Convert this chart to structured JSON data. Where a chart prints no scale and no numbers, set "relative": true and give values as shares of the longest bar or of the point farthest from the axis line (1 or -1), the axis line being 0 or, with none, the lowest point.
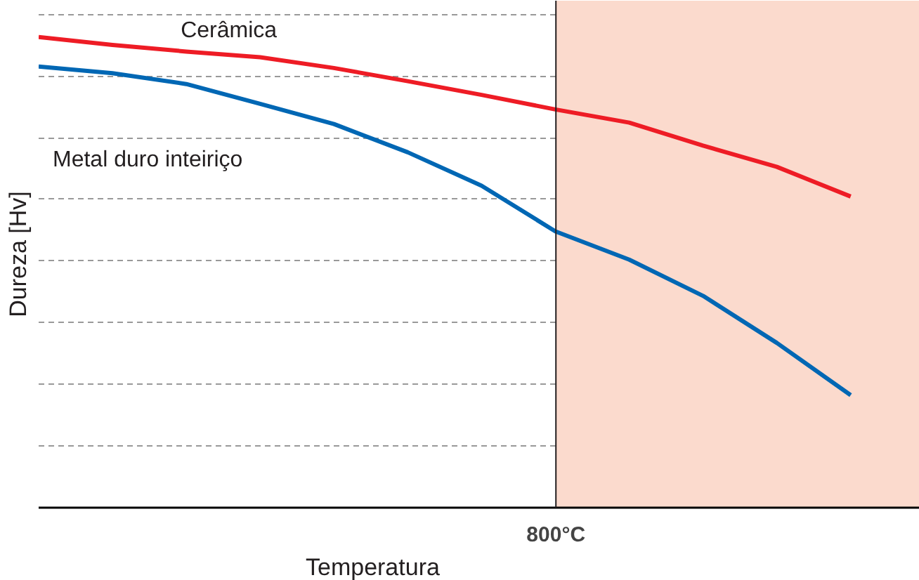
{
  "chart_data": {
    "type": "line",
    "relative": true,
    "xlabel": "Temperatura",
    "ylabel": "Dureza [Hv]",
    "categories": [
      null,
      null,
      null,
      null,
      null,
      null,
      null,
      null,
      null,
      null,
      null,
      null
    ],
    "series": [
      {
        "name": "Cerâmica",
        "color": "#ee1c25",
        "values": [
          1.0,
          0.983,
          0.969,
          0.957,
          0.934,
          0.906,
          0.877,
          0.846,
          0.818,
          0.769,
          0.724,
          0.661
        ]
      },
      {
        "name": "Metal duro inteiriço",
        "color": "#0067b4",
        "values": [
          0.937,
          0.923,
          0.9,
          0.858,
          0.815,
          0.755,
          0.684,
          0.587,
          0.527,
          0.45,
          0.35,
          0.239
        ]
      }
    ],
    "annotations": [
      "800°C"
    ],
    "grid": "y",
    "marker": "none",
    "line_style": "solid"
  }
}
